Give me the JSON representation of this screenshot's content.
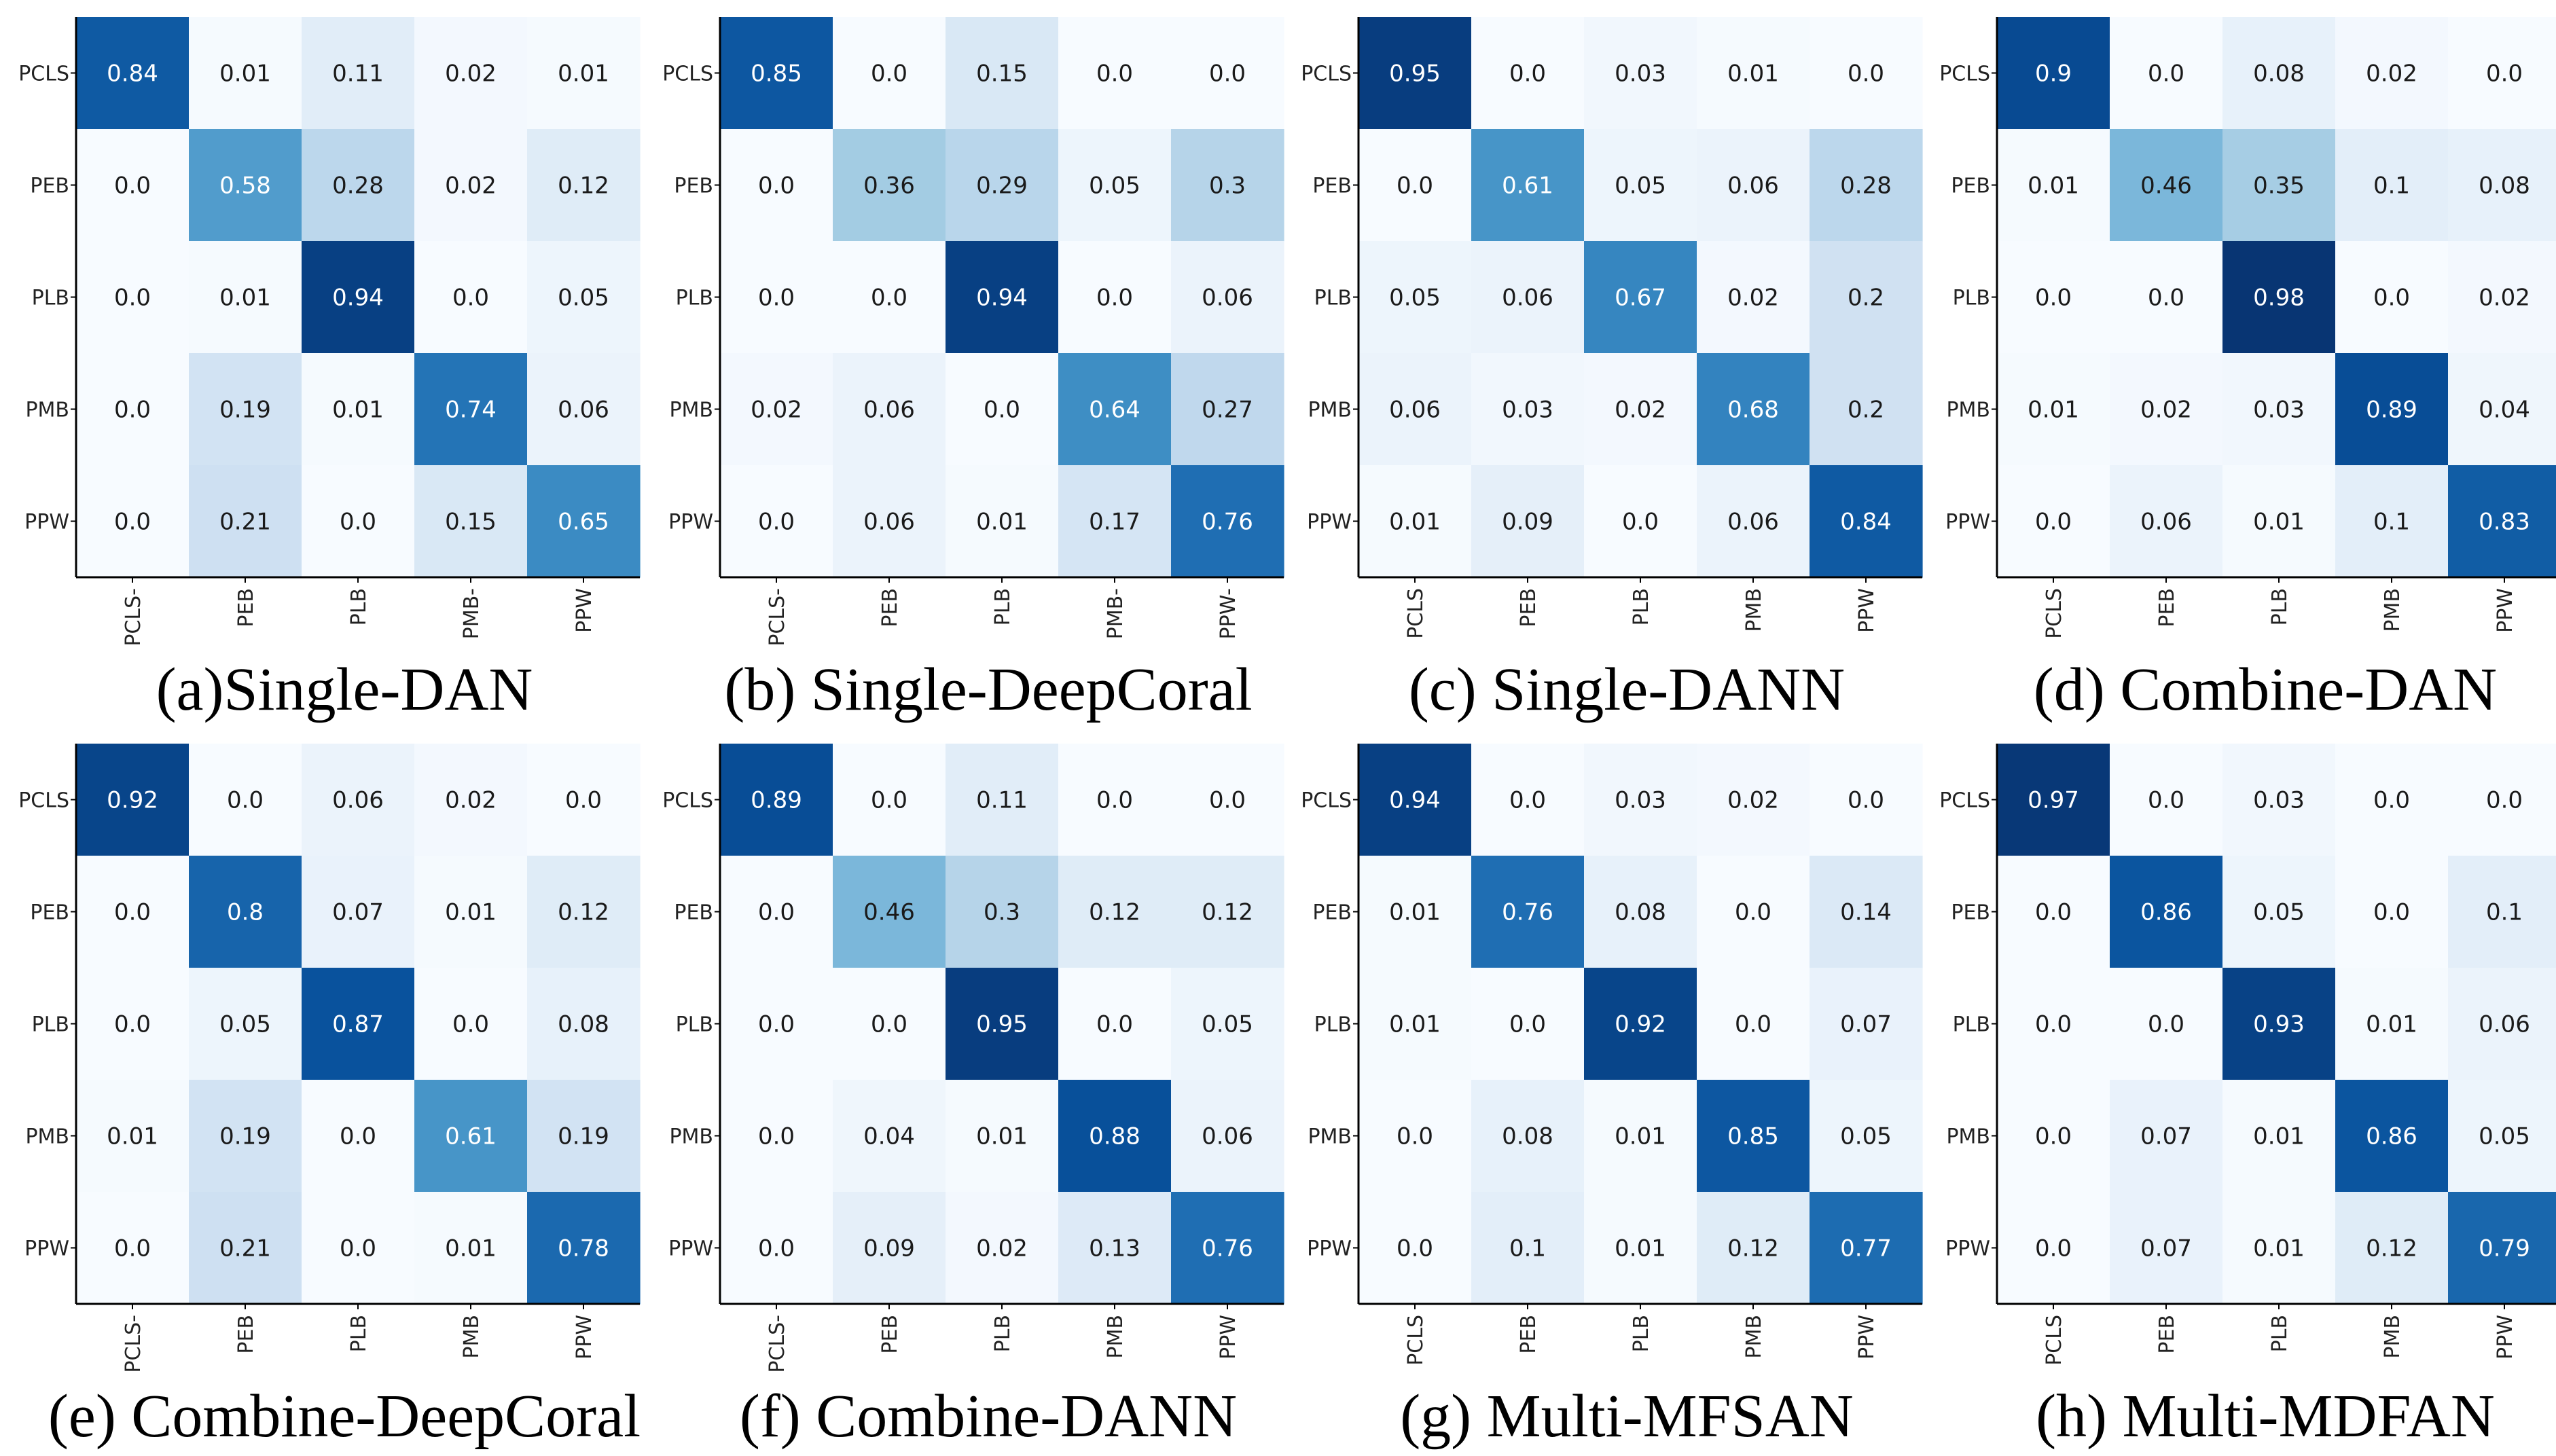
{
  "chart_data": [
    {
      "type": "heatmap",
      "title": "(a)Single-DAN",
      "row_labels": [
        "PCLS",
        "PEB",
        "PLB",
        "PMB",
        "PPW"
      ],
      "col_labels": [
        "PCLS-",
        "PEB",
        "PLB",
        "PMB-",
        "PPW"
      ],
      "values": [
        [
          "0.84",
          "0.01",
          "0.11",
          "0.02",
          "0.01"
        ],
        [
          "0.0",
          "0.58",
          "0.28",
          "0.02",
          "0.12"
        ],
        [
          "0.0",
          "0.01",
          "0.94",
          "0.0",
          "0.05"
        ],
        [
          "0.0",
          "0.19",
          "0.01",
          "0.74",
          "0.06"
        ],
        [
          "0.0",
          "0.21",
          "0.0",
          "0.15",
          "0.65"
        ]
      ],
      "colormap": "Blues",
      "vmin": 0,
      "vmax": 1
    },
    {
      "type": "heatmap",
      "title": "(b) Single-DeepCoral",
      "row_labels": [
        "PCLS",
        "PEB",
        "PLB",
        "PMB",
        "PPW"
      ],
      "col_labels": [
        "PCLS-",
        "PEB",
        "PLB",
        "PMB-",
        "PPW-"
      ],
      "values": [
        [
          "0.85",
          "0.0",
          "0.15",
          "0.0",
          "0.0"
        ],
        [
          "0.0",
          "0.36",
          "0.29",
          "0.05",
          "0.3"
        ],
        [
          "0.0",
          "0.0",
          "0.94",
          "0.0",
          "0.06"
        ],
        [
          "0.02",
          "0.06",
          "0.0",
          "0.64",
          "0.27"
        ],
        [
          "0.0",
          "0.06",
          "0.01",
          "0.17",
          "0.76"
        ]
      ],
      "colormap": "Blues",
      "vmin": 0,
      "vmax": 1
    },
    {
      "type": "heatmap",
      "title": "(c) Single-DANN",
      "row_labels": [
        "PCLS",
        "PEB",
        "PLB",
        "PMB",
        "PPW"
      ],
      "col_labels": [
        "PCLS",
        "PEB",
        "PLB",
        "PMB",
        "PPW"
      ],
      "values": [
        [
          "0.95",
          "0.0",
          "0.03",
          "0.01",
          "0.0"
        ],
        [
          "0.0",
          "0.61",
          "0.05",
          "0.06",
          "0.28"
        ],
        [
          "0.05",
          "0.06",
          "0.67",
          "0.02",
          "0.2"
        ],
        [
          "0.06",
          "0.03",
          "0.02",
          "0.68",
          "0.2"
        ],
        [
          "0.01",
          "0.09",
          "0.0",
          "0.06",
          "0.84"
        ]
      ],
      "colormap": "Blues",
      "vmin": 0,
      "vmax": 1
    },
    {
      "type": "heatmap",
      "title": "(d) Combine-DAN",
      "row_labels": [
        "PCLS",
        "PEB",
        "PLB",
        "PMB",
        "PPW"
      ],
      "col_labels": [
        "PCLS",
        "PEB",
        "PLB",
        "PMB",
        "PPW"
      ],
      "values": [
        [
          "0.9",
          "0.0",
          "0.08",
          "0.02",
          "0.0"
        ],
        [
          "0.01",
          "0.46",
          "0.35",
          "0.1",
          "0.08"
        ],
        [
          "0.0",
          "0.0",
          "0.98",
          "0.0",
          "0.02"
        ],
        [
          "0.01",
          "0.02",
          "0.03",
          "0.89",
          "0.04"
        ],
        [
          "0.0",
          "0.06",
          "0.01",
          "0.1",
          "0.83"
        ]
      ],
      "colormap": "Blues",
      "vmin": 0,
      "vmax": 1
    },
    {
      "type": "heatmap",
      "title": "(e) Combine-DeepCoral",
      "row_labels": [
        "PCLS",
        "PEB",
        "PLB",
        "PMB",
        "PPW"
      ],
      "col_labels": [
        "PCLS-",
        "PEB",
        "PLB",
        "PMB",
        "PPW"
      ],
      "values": [
        [
          "0.92",
          "0.0",
          "0.06",
          "0.02",
          "0.0"
        ],
        [
          "0.0",
          "0.8",
          "0.07",
          "0.01",
          "0.12"
        ],
        [
          "0.0",
          "0.05",
          "0.87",
          "0.0",
          "0.08"
        ],
        [
          "0.01",
          "0.19",
          "0.0",
          "0.61",
          "0.19"
        ],
        [
          "0.0",
          "0.21",
          "0.0",
          "0.01",
          "0.78"
        ]
      ],
      "colormap": "Blues",
      "vmin": 0,
      "vmax": 1
    },
    {
      "type": "heatmap",
      "title": "(f) Combine-DANN",
      "row_labels": [
        "PCLS",
        "PEB",
        "PLB",
        "PMB",
        "PPW"
      ],
      "col_labels": [
        "PCLS-",
        "PEB",
        "PLB",
        "PMB",
        "PPW"
      ],
      "values": [
        [
          "0.89",
          "0.0",
          "0.11",
          "0.0",
          "0.0"
        ],
        [
          "0.0",
          "0.46",
          "0.3",
          "0.12",
          "0.12"
        ],
        [
          "0.0",
          "0.0",
          "0.95",
          "0.0",
          "0.05"
        ],
        [
          "0.0",
          "0.04",
          "0.01",
          "0.88",
          "0.06"
        ],
        [
          "0.0",
          "0.09",
          "0.02",
          "0.13",
          "0.76"
        ]
      ],
      "colormap": "Blues",
      "vmin": 0,
      "vmax": 1
    },
    {
      "type": "heatmap",
      "title": "(g) Multi-MFSAN",
      "row_labels": [
        "PCLS",
        "PEB",
        "PLB",
        "PMB",
        "PPW"
      ],
      "col_labels": [
        "PCLS",
        "PEB",
        "PLB",
        "PMB",
        "PPW"
      ],
      "values": [
        [
          "0.94",
          "0.0",
          "0.03",
          "0.02",
          "0.0"
        ],
        [
          "0.01",
          "0.76",
          "0.08",
          "0.0",
          "0.14"
        ],
        [
          "0.01",
          "0.0",
          "0.92",
          "0.0",
          "0.07"
        ],
        [
          "0.0",
          "0.08",
          "0.01",
          "0.85",
          "0.05"
        ],
        [
          "0.0",
          "0.1",
          "0.01",
          "0.12",
          "0.77"
        ]
      ],
      "colormap": "Blues",
      "vmin": 0,
      "vmax": 1
    },
    {
      "type": "heatmap",
      "title": "(h) Multi-MDFAN",
      "row_labels": [
        "PCLS",
        "PEB",
        "PLB",
        "PMB",
        "PPW"
      ],
      "col_labels": [
        "PCLS",
        "PEB",
        "PLB",
        "PMB",
        "PPW"
      ],
      "values": [
        [
          "0.97",
          "0.0",
          "0.03",
          "0.0",
          "0.0"
        ],
        [
          "0.0",
          "0.86",
          "0.05",
          "0.0",
          "0.1"
        ],
        [
          "0.0",
          "0.0",
          "0.93",
          "0.01",
          "0.06"
        ],
        [
          "0.0",
          "0.07",
          "0.01",
          "0.86",
          "0.05"
        ],
        [
          "0.0",
          "0.07",
          "0.01",
          "0.12",
          "0.79"
        ]
      ],
      "colormap": "Blues",
      "vmin": 0,
      "vmax": 1
    }
  ]
}
